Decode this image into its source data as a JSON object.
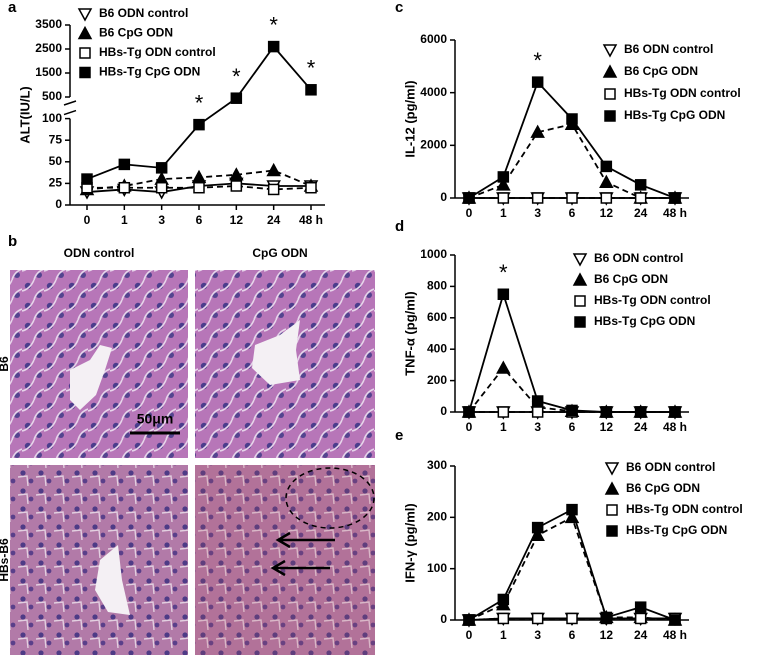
{
  "chart_data": [
    {
      "type": "line",
      "panel": "a",
      "ylabel": "ALT(IU/L)",
      "categories": [
        "0",
        "1",
        "3",
        "6",
        "12",
        "24",
        "48 h"
      ],
      "ylim": [
        0,
        3500
      ],
      "axis_break": [
        100,
        500
      ],
      "yticks": [
        0,
        25,
        50,
        75,
        100,
        500,
        1500,
        2500,
        3500
      ],
      "series": [
        {
          "name": "B6 ODN control",
          "marker": "triangle-down-open",
          "dashed": false,
          "color": "#000000",
          "values": [
            15,
            18,
            15,
            22,
            25,
            22,
            22
          ]
        },
        {
          "name": "B6 CpG ODN",
          "marker": "triangle-up",
          "dashed": true,
          "color": "#000000",
          "values": [
            18,
            22,
            30,
            32,
            35,
            40,
            22
          ]
        },
        {
          "name": "HBs-Tg ODN control",
          "marker": "square-open",
          "dashed": true,
          "color": "#000000",
          "values": [
            20,
            20,
            20,
            20,
            22,
            18,
            20
          ]
        },
        {
          "name": "HBs-Tg CpG ODN",
          "marker": "square",
          "dashed": false,
          "color": "#000000",
          "values": [
            30,
            47,
            43,
            93,
            450,
            2600,
            800
          ]
        }
      ],
      "annotations": [
        {
          "text": "*",
          "category": "6"
        },
        {
          "text": "*",
          "category": "12"
        },
        {
          "text": "*",
          "category": "24"
        },
        {
          "text": "*",
          "category": "48 h"
        }
      ]
    },
    {
      "type": "line",
      "panel": "c",
      "ylabel": "IL-12 (pg/ml)",
      "categories": [
        "0",
        "1",
        "3",
        "6",
        "12",
        "24",
        "48 h"
      ],
      "ylim": [
        0,
        6000
      ],
      "yticks": [
        0,
        2000,
        4000,
        6000
      ],
      "series": [
        {
          "name": "B6 ODN control",
          "marker": "triangle-down-open",
          "dashed": false,
          "color": "#000000",
          "values": [
            0,
            0,
            0,
            0,
            0,
            0,
            0
          ]
        },
        {
          "name": "B6 CpG ODN",
          "marker": "triangle-up",
          "dashed": true,
          "color": "#000000",
          "values": [
            0,
            500,
            2500,
            2800,
            600,
            0,
            0
          ]
        },
        {
          "name": "HBs-Tg  ODN control",
          "marker": "square-open",
          "dashed": true,
          "color": "#000000",
          "values": [
            0,
            0,
            0,
            0,
            0,
            0,
            0
          ]
        },
        {
          "name": "HBs-Tg CpG ODN",
          "marker": "square",
          "dashed": false,
          "color": "#000000",
          "values": [
            0,
            800,
            4400,
            3000,
            1200,
            500,
            0
          ]
        }
      ],
      "annotations": [
        {
          "text": "*",
          "category": "3"
        }
      ]
    },
    {
      "type": "line",
      "panel": "d",
      "ylabel": "TNF-α (pg/ml)",
      "categories": [
        "0",
        "1",
        "3",
        "6",
        "12",
        "24",
        "48 h"
      ],
      "ylim": [
        0,
        1000
      ],
      "yticks": [
        0,
        200,
        400,
        600,
        800,
        1000
      ],
      "series": [
        {
          "name": "B6 ODN control",
          "marker": "triangle-down-open",
          "dashed": false,
          "color": "#000000",
          "values": [
            0,
            0,
            0,
            0,
            0,
            0,
            0
          ]
        },
        {
          "name": "B6 CpG ODN",
          "marker": "triangle-up",
          "dashed": true,
          "color": "#000000",
          "values": [
            0,
            280,
            30,
            5,
            0,
            0,
            0
          ]
        },
        {
          "name": "HBs-Tg ODN control",
          "marker": "square-open",
          "dashed": true,
          "color": "#000000",
          "values": [
            0,
            0,
            0,
            0,
            0,
            0,
            0
          ]
        },
        {
          "name": "HBs-Tg CpG ODN",
          "marker": "square",
          "dashed": false,
          "color": "#000000",
          "values": [
            0,
            750,
            70,
            10,
            0,
            0,
            0
          ]
        }
      ],
      "annotations": [
        {
          "text": "*",
          "category": "1"
        }
      ]
    },
    {
      "type": "line",
      "panel": "e",
      "ylabel": "IFN-γ (pg/ml)",
      "categories": [
        "0",
        "1",
        "3",
        "6",
        "12",
        "24",
        "48 h"
      ],
      "ylim": [
        0,
        300
      ],
      "yticks": [
        0,
        100,
        200,
        300
      ],
      "series": [
        {
          "name": "B6 ODN control",
          "marker": "triangle-down-open",
          "dashed": false,
          "color": "#000000",
          "values": [
            0,
            3,
            3,
            3,
            3,
            3,
            3
          ]
        },
        {
          "name": "B6 CpG ODN",
          "marker": "triangle-up",
          "dashed": true,
          "color": "#000000",
          "values": [
            0,
            30,
            165,
            200,
            5,
            5,
            0
          ]
        },
        {
          "name": "HBs-Tg ODN control",
          "marker": "square-open",
          "dashed": true,
          "color": "#000000",
          "values": [
            0,
            3,
            3,
            3,
            3,
            3,
            3
          ]
        },
        {
          "name": "HBs-Tg CpG ODN",
          "marker": "square",
          "dashed": false,
          "color": "#000000",
          "values": [
            0,
            40,
            180,
            215,
            5,
            25,
            0
          ]
        }
      ],
      "annotations": []
    }
  ],
  "histology": {
    "panel": "b",
    "columns": [
      "ODN control",
      "CpG ODN"
    ],
    "rows": [
      "B6",
      "HBs-B6"
    ],
    "scale_bar": "50μm"
  }
}
